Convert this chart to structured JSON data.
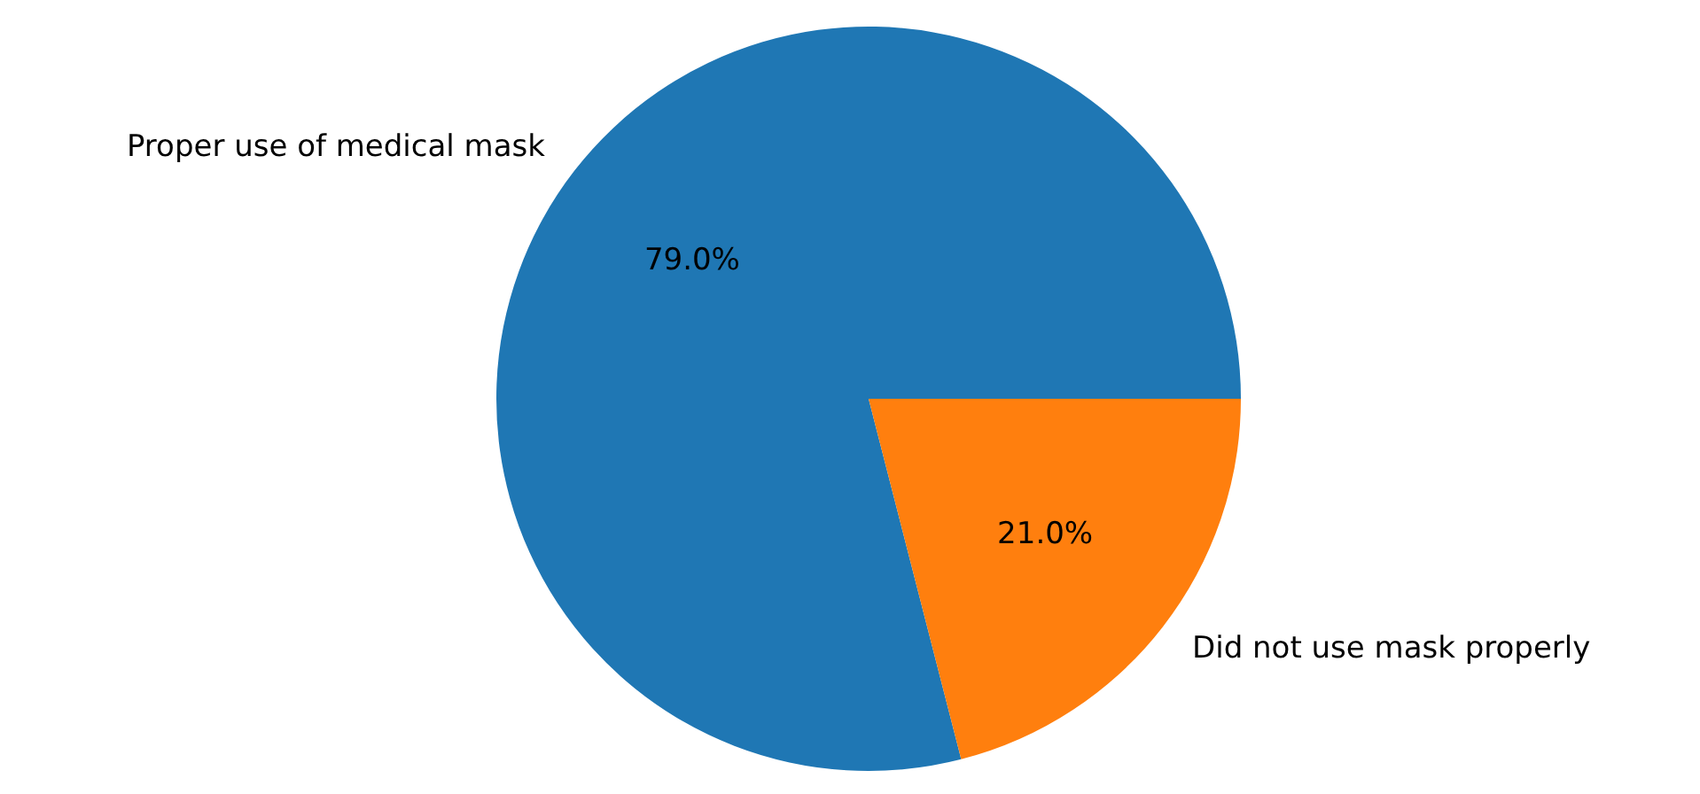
{
  "chart_data": {
    "type": "pie",
    "categories": [
      "Proper use of medical mask",
      "Did not use mask properly"
    ],
    "values": [
      79.0,
      21.0
    ],
    "colors": [
      "#1f77b4",
      "#ff7f0e"
    ],
    "value_labels": [
      "79.0%",
      "21.0%"
    ],
    "legend": false
  }
}
